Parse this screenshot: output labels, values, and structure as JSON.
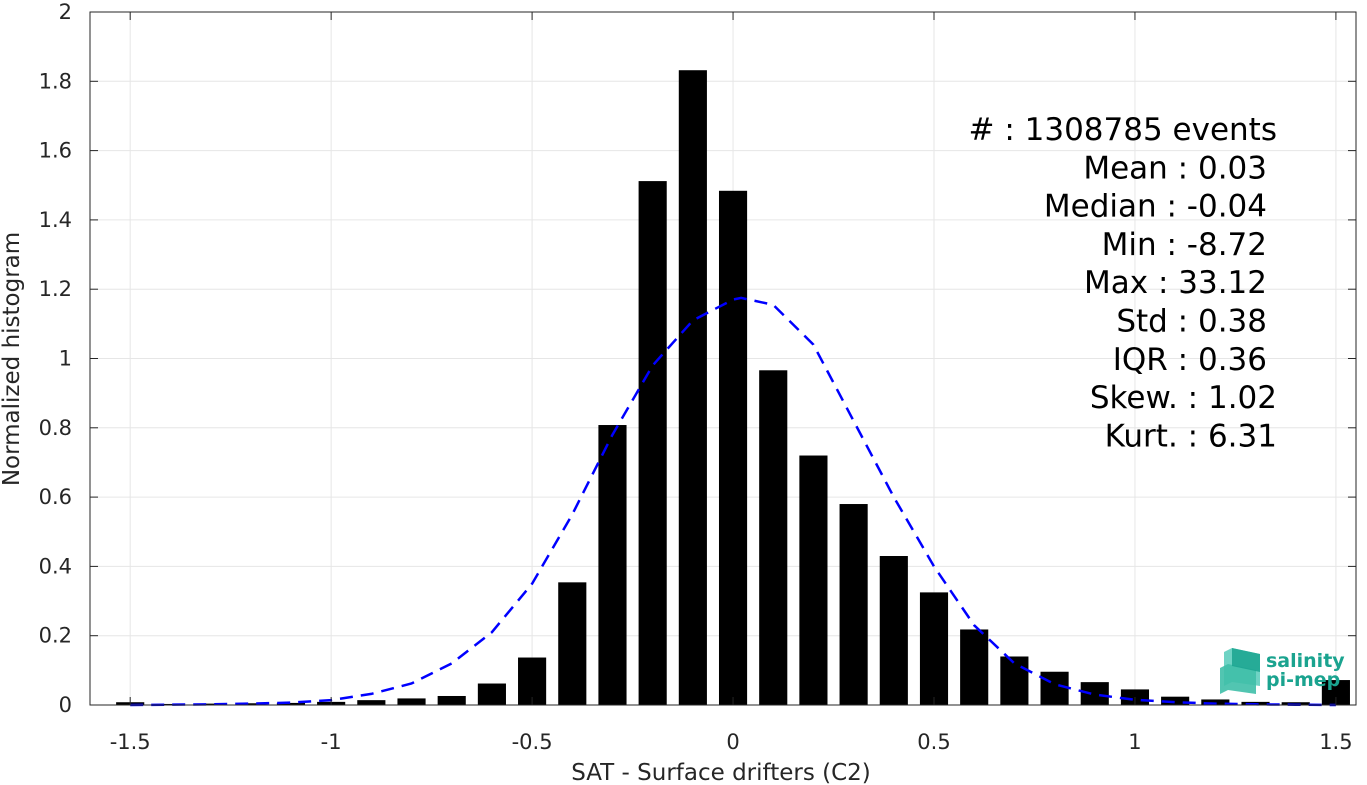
{
  "chart_data": {
    "type": "bar",
    "xlabel": "SAT - Surface drifters (C2)",
    "ylabel": "Normalized histogram",
    "xlim": [
      -1.6,
      1.55
    ],
    "ylim": [
      0,
      2
    ],
    "grid": true,
    "xticks": [
      -1.5,
      -1,
      -0.5,
      0,
      0.5,
      1,
      1.5
    ],
    "xtick_labels": [
      "-1.5",
      "-1",
      "-0.5",
      "0",
      "0.5",
      "1",
      "1.5"
    ],
    "yticks": [
      0,
      0.2,
      0.4,
      0.6,
      0.8,
      1,
      1.2,
      1.4,
      1.6,
      1.8,
      2
    ],
    "ytick_labels": [
      "0",
      "0.2",
      "0.4",
      "0.6",
      "0.8",
      "1",
      "1.2",
      "1.4",
      "1.6",
      "1.8",
      "2"
    ],
    "bar_width": 0.07,
    "bars": {
      "x": [
        -1.5,
        -1.4,
        -1.3,
        -1.2,
        -1.1,
        -1.0,
        -0.9,
        -0.8,
        -0.7,
        -0.6,
        -0.5,
        -0.4,
        -0.3,
        -0.2,
        -0.1,
        0.0,
        0.1,
        0.2,
        0.3,
        0.4,
        0.5,
        0.6,
        0.7,
        0.8,
        0.9,
        1.0,
        1.1,
        1.2,
        1.3,
        1.4,
        1.5
      ],
      "values": [
        0.008,
        0.003,
        0.004,
        0.005,
        0.006,
        0.009,
        0.014,
        0.019,
        0.026,
        0.062,
        0.137,
        0.354,
        0.808,
        1.512,
        1.832,
        1.484,
        0.966,
        0.72,
        0.58,
        0.43,
        0.325,
        0.218,
        0.14,
        0.096,
        0.066,
        0.045,
        0.024,
        0.016,
        0.009,
        0.008,
        0.072
      ],
      "color": "#000000"
    },
    "fit_curve": {
      "style": "dashed",
      "color": "#0000ff",
      "x": [
        -1.5,
        -1.4,
        -1.3,
        -1.2,
        -1.1,
        -1.0,
        -0.9,
        -0.8,
        -0.7,
        -0.6,
        -0.5,
        -0.4,
        -0.3,
        -0.2,
        -0.1,
        0.0,
        0.02,
        0.1,
        0.2,
        0.3,
        0.4,
        0.5,
        0.6,
        0.7,
        0.8,
        0.9,
        1.0,
        1.1,
        1.2,
        1.3,
        1.4,
        1.5
      ],
      "y": [
        0.0,
        0.001,
        0.002,
        0.004,
        0.007,
        0.014,
        0.032,
        0.062,
        0.12,
        0.21,
        0.35,
        0.55,
        0.78,
        0.98,
        1.11,
        1.17,
        1.175,
        1.155,
        1.04,
        0.82,
        0.6,
        0.4,
        0.23,
        0.12,
        0.06,
        0.03,
        0.015,
        0.008,
        0.004,
        0.002,
        0.001,
        0.0
      ]
    },
    "annotations": [
      "#  : 1308785 events",
      "Mean : 0.03",
      "Median : -0.04",
      "Min : -8.72",
      "Max : 33.12",
      "Std : 0.38",
      "IQR : 0.36",
      "Skew. : 1.02",
      "Kurt. : 6.31"
    ]
  },
  "logo": {
    "line1": "salinity",
    "line2": "pi-mep",
    "color": "#1aa38f"
  }
}
